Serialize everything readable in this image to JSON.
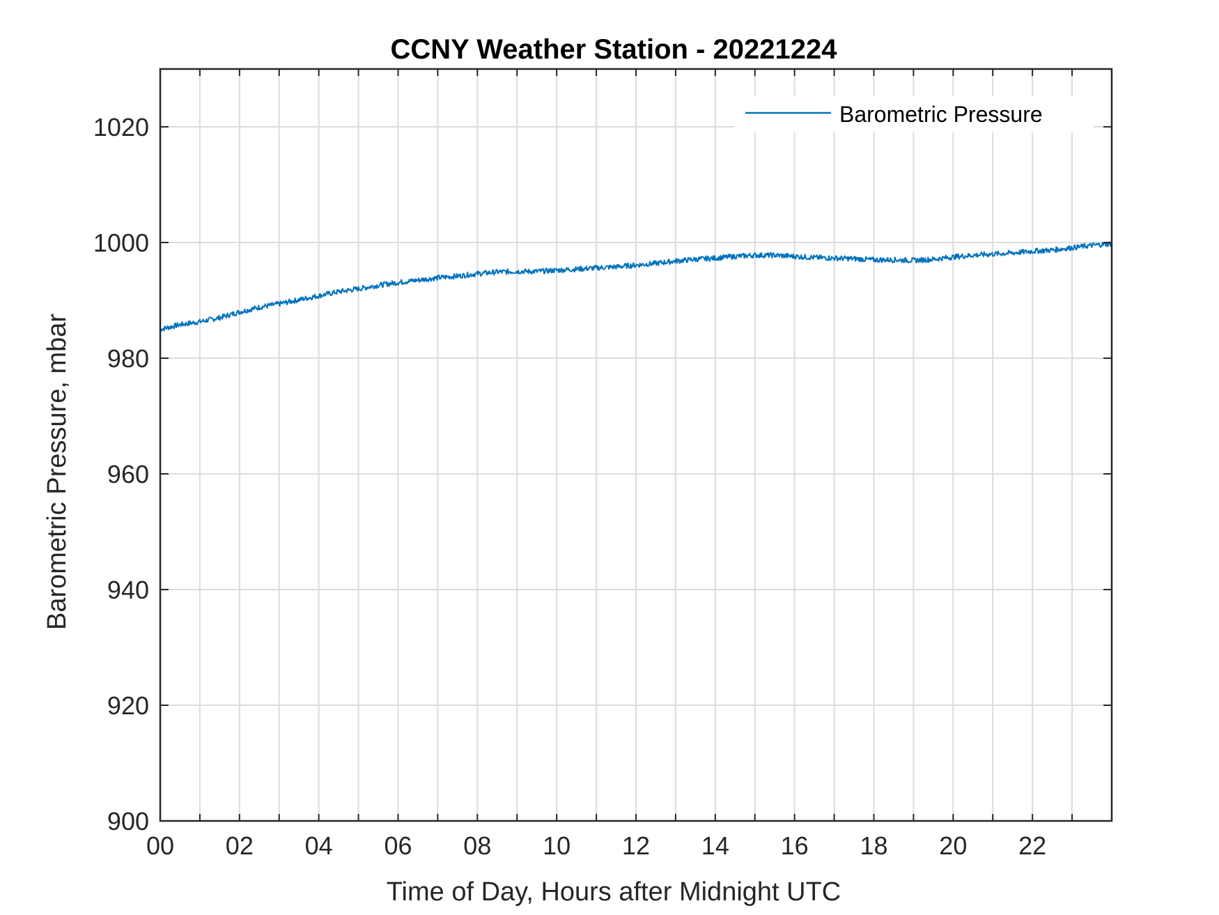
{
  "chart_data": {
    "type": "line",
    "title": "CCNY Weather Station - 20221224",
    "xlabel": "Time of Day, Hours after Midnight UTC",
    "ylabel": "Barometric Pressure, mbar",
    "xlim": [
      0,
      24
    ],
    "ylim": [
      900,
      1030
    ],
    "grid": true,
    "legend_position": "top-right",
    "xticks": [
      0,
      2,
      4,
      6,
      8,
      10,
      12,
      14,
      16,
      18,
      20,
      22
    ],
    "xtick_labels": [
      "00",
      "02",
      "04",
      "06",
      "08",
      "10",
      "12",
      "14",
      "16",
      "18",
      "20",
      "22"
    ],
    "yticks": [
      900,
      920,
      940,
      960,
      980,
      1000,
      1020
    ],
    "ytick_labels": [
      "900",
      "920",
      "940",
      "960",
      "980",
      "1000",
      "1020"
    ],
    "colors": {
      "series": "#0072BD",
      "axis": "#262626",
      "grid": "#dcdcdc"
    },
    "series": [
      {
        "name": "Barometric Pressure",
        "x": [
          0,
          0.5,
          1,
          1.5,
          2,
          2.5,
          3,
          3.5,
          4,
          4.5,
          5,
          5.5,
          6,
          6.5,
          7,
          7.5,
          8,
          8.5,
          9,
          9.5,
          10,
          10.5,
          11,
          11.5,
          12,
          12.5,
          13,
          13.5,
          14,
          14.5,
          15,
          15.5,
          16,
          16.5,
          17,
          17.5,
          18,
          18.5,
          19,
          19.5,
          20,
          20.5,
          21,
          21.5,
          22,
          22.5,
          23,
          23.5,
          24
        ],
        "values": [
          985.0,
          985.8,
          986.3,
          987.0,
          988.0,
          988.8,
          989.4,
          990.1,
          990.8,
          991.5,
          992.0,
          992.6,
          993.1,
          993.5,
          993.9,
          994.2,
          994.6,
          994.9,
          995.0,
          995.0,
          995.2,
          995.4,
          995.6,
          995.8,
          996.1,
          996.4,
          996.8,
          997.1,
          997.3,
          997.6,
          997.8,
          997.8,
          997.6,
          997.4,
          997.3,
          997.2,
          997.0,
          997.0,
          996.9,
          997.1,
          997.5,
          997.8,
          998.0,
          998.2,
          998.5,
          998.7,
          999.1,
          999.5,
          999.8
        ]
      }
    ]
  }
}
